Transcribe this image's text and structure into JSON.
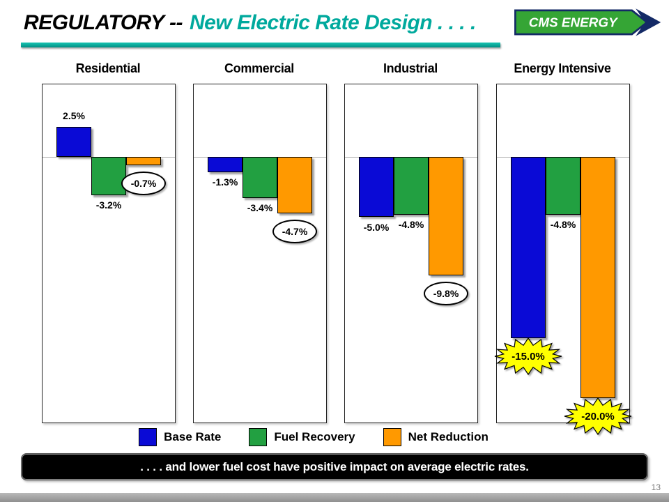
{
  "header": {
    "title_prefix": "REGULATORY --",
    "title_main": "New Electric Rate Design . . . .",
    "logo_text": "CMS ENERGY"
  },
  "footer": {
    "message": ". . . . and lower fuel cost have positive impact on average electric rates.",
    "page_number": "13"
  },
  "legend": {
    "items": [
      {
        "label": "Base Rate",
        "color": "#0a0ad6"
      },
      {
        "label": "Fuel Recovery",
        "color": "#22a041"
      },
      {
        "label": "Net Reduction",
        "color": "#ff9900"
      }
    ]
  },
  "chart_data": {
    "type": "bar",
    "title": "New Electric Rate Design",
    "series": [
      "Base Rate",
      "Fuel Recovery",
      "Net Reduction"
    ],
    "colors": [
      "#0a0ad6",
      "#22a041",
      "#ff9900"
    ],
    "ylim": [
      -22,
      6
    ],
    "unit": "%",
    "burst_color": "#ffff00",
    "groups": [
      {
        "category": "Residential",
        "bars": [
          {
            "series": "Base Rate",
            "value": 2.5,
            "label": "2.5%",
            "callout": "plain"
          },
          {
            "series": "Fuel Recovery",
            "value": -3.2,
            "label": "-3.2%",
            "callout": "plain"
          },
          {
            "series": "Net Reduction",
            "value": -0.7,
            "label": "-0.7%",
            "callout": "oval"
          }
        ]
      },
      {
        "category": "Commercial",
        "bars": [
          {
            "series": "Base Rate",
            "value": -1.3,
            "label": "-1.3%",
            "callout": "plain"
          },
          {
            "series": "Fuel Recovery",
            "value": -3.4,
            "label": "-3.4%",
            "callout": "plain"
          },
          {
            "series": "Net Reduction",
            "value": -4.7,
            "label": "-4.7%",
            "callout": "oval"
          }
        ]
      },
      {
        "category": "Industrial",
        "bars": [
          {
            "series": "Base Rate",
            "value": -5.0,
            "label": "-5.0%",
            "callout": "plain"
          },
          {
            "series": "Fuel Recovery",
            "value": -4.8,
            "label": "-4.8%",
            "callout": "plain"
          },
          {
            "series": "Net Reduction",
            "value": -9.8,
            "label": "-9.8%",
            "callout": "oval"
          }
        ]
      },
      {
        "category": "Energy Intensive",
        "bars": [
          {
            "series": "Base Rate",
            "value": -15.0,
            "label": "-15.0%",
            "callout": "burst"
          },
          {
            "series": "Fuel Recovery",
            "value": -4.8,
            "label": "-4.8%",
            "callout": "plain"
          },
          {
            "series": "Net Reduction",
            "value": -20.0,
            "label": "-20.0%",
            "callout": "burst"
          }
        ]
      }
    ]
  }
}
